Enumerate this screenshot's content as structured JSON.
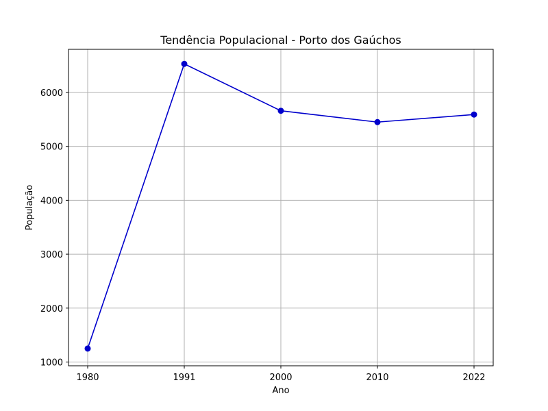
{
  "chart_data": {
    "type": "line",
    "title": "Tendência Populacional - Porto dos Gaúchos",
    "xlabel": "Ano",
    "ylabel": "População",
    "categories": [
      "1980",
      "1991",
      "2000",
      "2010",
      "2022"
    ],
    "series": [
      {
        "values": [
          1250,
          6530,
          5660,
          5450,
          5590
        ],
        "color": "#0000cc",
        "marker": "circle"
      }
    ],
    "yticks": [
      1000,
      2000,
      3000,
      4000,
      5000,
      6000
    ],
    "ylim": [
      930,
      6800
    ],
    "grid": true,
    "legend": "none"
  }
}
